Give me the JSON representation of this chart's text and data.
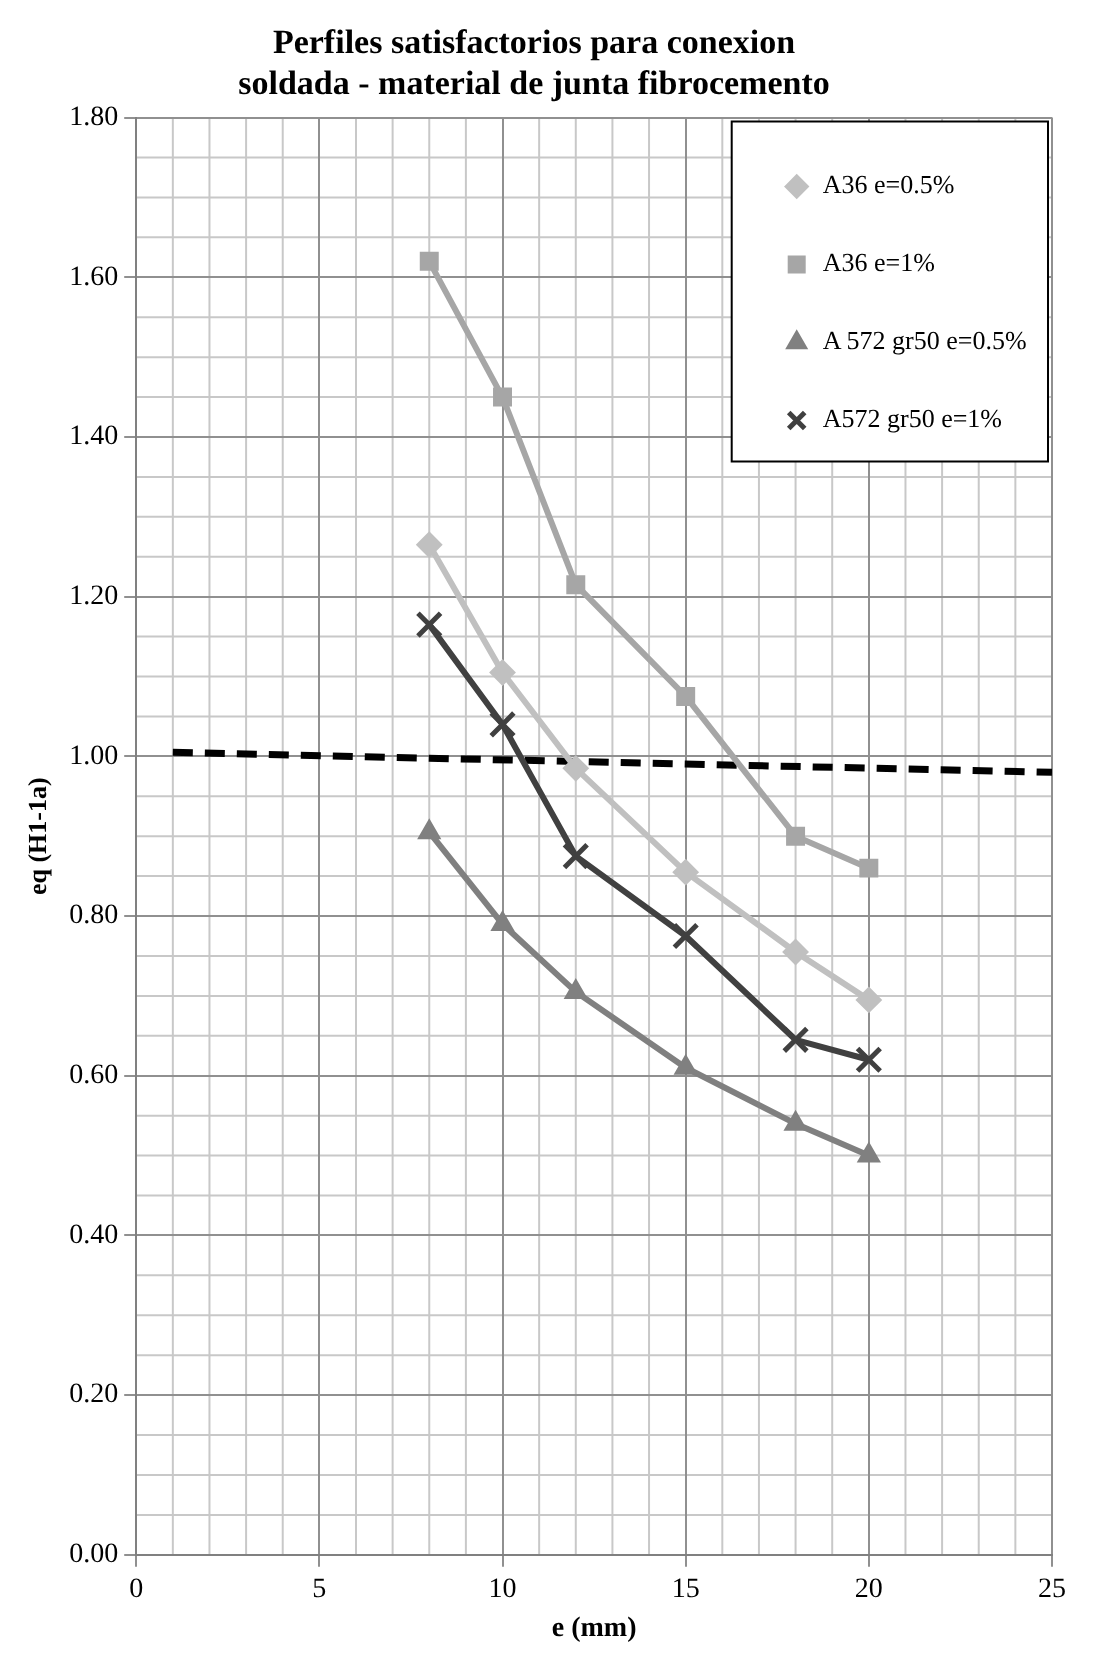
{
  "chart_data": {
    "type": "line",
    "title": "Perfiles satisfactorios para conexion soldada - material de junta fibrocemento",
    "xlabel": "e (mm)",
    "ylabel": "eq (H1-1a)",
    "xlim": [
      0,
      25
    ],
    "xticks": [
      0,
      5,
      10,
      15,
      20,
      25
    ],
    "ylim": [
      0,
      1.8
    ],
    "yticks": [
      {
        "value": 0,
        "label": "0.00"
      },
      {
        "value": 0.2,
        "label": "0.20"
      },
      {
        "value": 0.4,
        "label": "0.40"
      },
      {
        "value": 0.6,
        "label": "0.60"
      },
      {
        "value": 0.8,
        "label": "0.80"
      },
      {
        "value": 1,
        "label": "1.00"
      },
      {
        "value": 1.2,
        "label": "1.20"
      },
      {
        "value": 1.4,
        "label": "1.40"
      },
      {
        "value": 1.6,
        "label": "1.60"
      },
      {
        "value": 1.8,
        "label": "1.80"
      }
    ],
    "grid": true,
    "legend": "top right",
    "x": [
      8,
      10,
      12,
      15,
      18,
      20
    ],
    "series": [
      {
        "name": "A36 e=0.5%",
        "color": "#c0c0c0",
        "marker": "diamond",
        "values": [
          1.265,
          1.105,
          0.985,
          0.855,
          0.755,
          0.695
        ]
      },
      {
        "name": "A36 e=1%",
        "color": "#a6a6a6",
        "marker": "square",
        "values": [
          1.62,
          1.45,
          1.215,
          1.075,
          0.9,
          0.86
        ]
      },
      {
        "name": "A 572 gr50 e=0.5%",
        "color": "#808080",
        "marker": "triangle",
        "values": [
          0.905,
          0.79,
          0.705,
          0.61,
          0.54,
          0.5
        ]
      },
      {
        "name": "A572 gr50 e=1%",
        "color": "#404040",
        "marker": "cross",
        "values": [
          1.165,
          1.04,
          0.875,
          0.775,
          0.645,
          0.62
        ]
      },
      {
        "color": "#000000",
        "marker": "none",
        "line_style": "dashed",
        "x": [
          1,
          25
        ],
        "values": [
          1.005,
          0.98
        ]
      }
    ]
  }
}
